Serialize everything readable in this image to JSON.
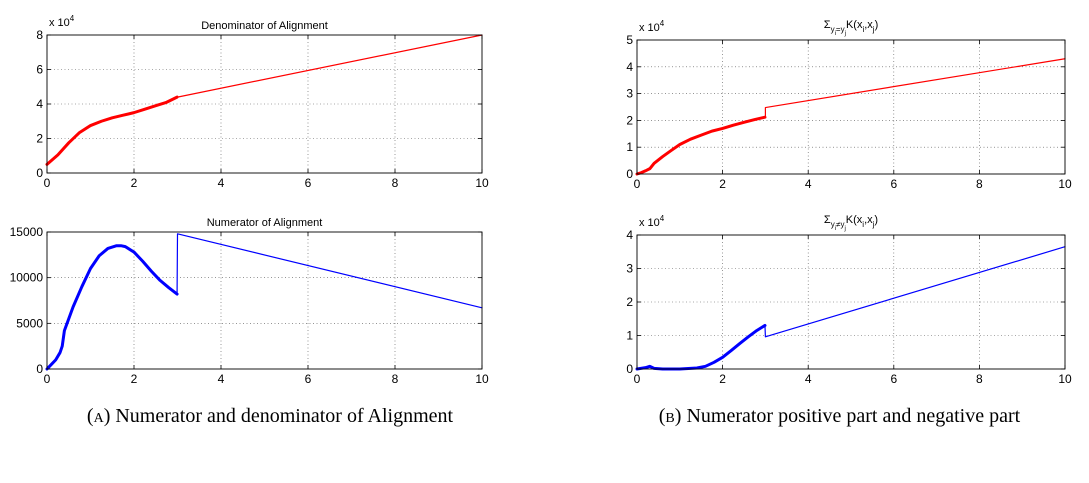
{
  "chart_data": [
    {
      "type": "line",
      "title": "Denominator of Alignment",
      "title_parts": [],
      "exponent_label": "x 10",
      "exponent_power": "4",
      "xlim": [
        0,
        10
      ],
      "ylim": [
        0,
        80000
      ],
      "xticks": [
        0,
        2,
        4,
        6,
        8,
        10
      ],
      "xtick_labels": [
        "0",
        "2",
        "4",
        "6",
        "8",
        "10"
      ],
      "yticks": [
        0,
        20000,
        40000,
        60000,
        80000
      ],
      "ytick_labels": [
        "0",
        "2",
        "4",
        "6",
        "8"
      ],
      "grid": true,
      "color": "#ff0000",
      "series": [
        {
          "x": [
            0,
            0.25,
            0.5,
            0.75,
            1,
            1.25,
            1.5,
            1.75,
            2,
            2.25,
            2.5,
            2.75,
            2.99
          ],
          "y": [
            5000,
            10500,
            17500,
            23500,
            27500,
            30000,
            32000,
            33500,
            35000,
            37000,
            39000,
            41000,
            44000
          ]
        },
        {
          "x": [
            3,
            10
          ],
          "y": [
            44000,
            80000
          ]
        }
      ]
    },
    {
      "type": "line",
      "title": "Numerator of Alignment",
      "title_parts": [],
      "exponent_label": "",
      "exponent_power": "",
      "xlim": [
        0,
        10
      ],
      "ylim": [
        0,
        15000
      ],
      "xticks": [
        0,
        2,
        4,
        6,
        8,
        10
      ],
      "xtick_labels": [
        "0",
        "2",
        "4",
        "6",
        "8",
        "10"
      ],
      "yticks": [
        0,
        5000,
        10000,
        15000
      ],
      "ytick_labels": [
        "0",
        "5000",
        "10000",
        "15000"
      ],
      "grid": true,
      "color": "#0000ff",
      "series": [
        {
          "x": [
            0,
            0.1,
            0.2,
            0.3,
            0.35,
            0.4,
            0.5,
            0.6,
            0.8,
            1.0,
            1.2,
            1.4,
            1.6,
            1.7,
            1.8,
            2.0,
            2.2,
            2.4,
            2.6,
            2.8,
            2.99
          ],
          "y": [
            0,
            500,
            1000,
            1800,
            2500,
            4200,
            5500,
            6800,
            9000,
            11000,
            12400,
            13200,
            13500,
            13500,
            13400,
            12800,
            11800,
            10700,
            9700,
            8900,
            8200
          ]
        },
        {
          "x": [
            2.99,
            3,
            10
          ],
          "y": [
            8200,
            14800,
            6700
          ]
        }
      ]
    },
    {
      "type": "line",
      "title": "",
      "title_parts": [
        "Σ",
        "y",
        "i",
        "=y",
        "j",
        "K(x",
        "i",
        ",x",
        "j",
        ")"
      ],
      "exponent_label": "x 10",
      "exponent_power": "4",
      "xlim": [
        0,
        10
      ],
      "ylim": [
        0,
        50000
      ],
      "xticks": [
        0,
        2,
        4,
        6,
        8,
        10
      ],
      "xtick_labels": [
        "0",
        "2",
        "4",
        "6",
        "8",
        "10"
      ],
      "yticks": [
        0,
        10000,
        20000,
        30000,
        40000,
        50000
      ],
      "ytick_labels": [
        "0",
        "1",
        "2",
        "3",
        "4",
        "5"
      ],
      "grid": true,
      "color": "#ff0000",
      "series": [
        {
          "x": [
            0,
            0.1,
            0.2,
            0.3,
            0.4,
            0.6,
            0.8,
            1.0,
            1.25,
            1.5,
            1.75,
            2.0,
            2.25,
            2.5,
            2.75,
            2.99
          ],
          "y": [
            0,
            500,
            1200,
            2000,
            4000,
            6500,
            8800,
            11000,
            13000,
            14500,
            16000,
            17000,
            18200,
            19300,
            20300,
            21200
          ]
        },
        {
          "x": [
            2.99,
            3,
            3,
            10
          ],
          "y": [
            21200,
            21200,
            24800,
            43000
          ]
        }
      ]
    },
    {
      "type": "line",
      "title": "",
      "title_parts": [
        "Σ",
        "y",
        "i",
        "≠y",
        "j",
        "K(x",
        "i",
        ",x",
        "j",
        ")"
      ],
      "exponent_label": "x 10",
      "exponent_power": "4",
      "xlim": [
        0,
        10
      ],
      "ylim": [
        0,
        40000
      ],
      "xticks": [
        0,
        2,
        4,
        6,
        8,
        10
      ],
      "xtick_labels": [
        "0",
        "2",
        "4",
        "6",
        "8",
        "10"
      ],
      "yticks": [
        0,
        10000,
        20000,
        30000,
        40000
      ],
      "ytick_labels": [
        "0",
        "1",
        "2",
        "3",
        "4"
      ],
      "grid": true,
      "color": "#0000ff",
      "series": [
        {
          "x": [
            0,
            0.2,
            0.3,
            0.4,
            0.6,
            1.0,
            1.4,
            1.6,
            1.8,
            2.0,
            2.2,
            2.4,
            2.6,
            2.8,
            2.99
          ],
          "y": [
            0,
            400,
            800,
            200,
            0,
            0,
            300,
            800,
            2000,
            3500,
            5500,
            7600,
            9600,
            11500,
            13000
          ]
        },
        {
          "x": [
            2.99,
            3,
            10
          ],
          "y": [
            13000,
            9600,
            36500
          ]
        }
      ]
    }
  ],
  "captions": {
    "a_label": "(a)",
    "a_text": "Numerator and denominator of Alignment",
    "b_label": "(b)",
    "b_text": "Numerator positive part and negative part"
  }
}
